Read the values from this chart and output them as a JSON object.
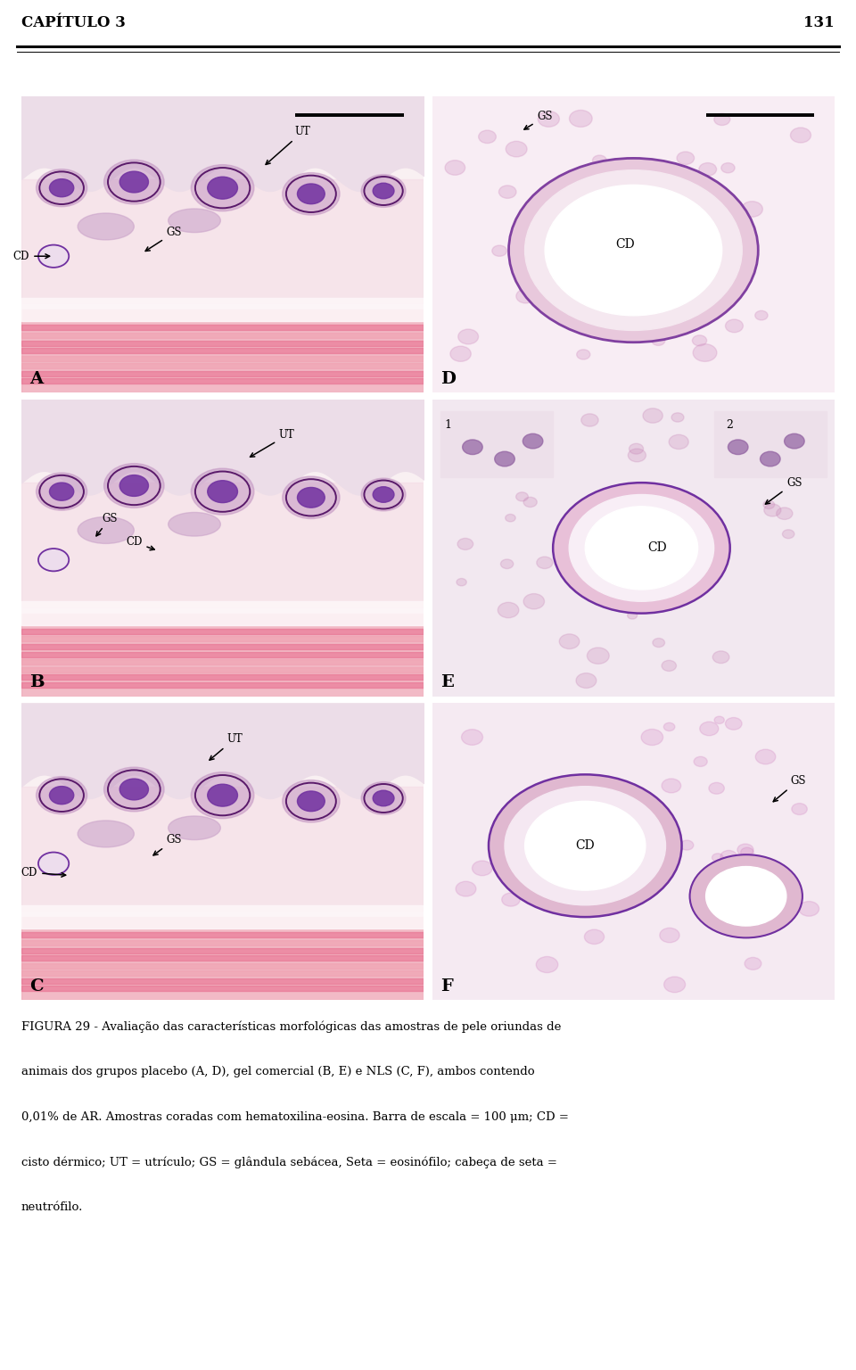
{
  "header_text": "CAPÍTULO 3",
  "page_number": "131",
  "caption_line1": "FIGURA 29 - Avaliação das características morfológicas das amostras de pele oriundas de",
  "caption_line2": "animais dos grupos placebo (A, D), gel comercial (B, E) e NLS (C, F), ambos contendo",
  "caption_line3": "0,01% de AR. Amostras coradas com hematoxilina-eosina. Barra de escala = 100 μm; CD =",
  "caption_line4": "cisto dérmico; UT = utrículo; GS = glândula sebácea, Seta = eosinófilo; cabeça de seta =",
  "caption_line5": "neutrófilo.",
  "bg_color": "#ffffff",
  "fig_width": 9.6,
  "fig_height": 15.36,
  "dpi": 100
}
